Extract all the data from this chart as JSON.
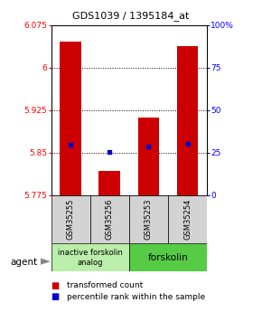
{
  "title": "GDS1039 / 1395184_at",
  "samples": [
    "GSM35255",
    "GSM35256",
    "GSM35253",
    "GSM35254"
  ],
  "bar_bottoms": [
    5.775,
    5.775,
    5.775,
    5.775
  ],
  "bar_tops": [
    6.045,
    5.818,
    5.912,
    6.038
  ],
  "percentile_values": [
    5.863,
    5.851,
    5.86,
    5.865
  ],
  "ylim_left": [
    5.775,
    6.075
  ],
  "ylim_right": [
    0,
    100
  ],
  "yticks_left": [
    5.775,
    5.85,
    5.925,
    6.0,
    6.075
  ],
  "yticks_right": [
    0,
    25,
    50,
    75,
    100
  ],
  "ytick_labels_left": [
    "5.775",
    "5.85",
    "5.925",
    "6",
    "6.075"
  ],
  "ytick_labels_right": [
    "0",
    "25",
    "50",
    "75",
    "100%"
  ],
  "hlines": [
    5.85,
    5.925,
    6.0
  ],
  "bar_color": "#cc0000",
  "percentile_color": "#0000cc",
  "group1_label": "inactive forskolin\nanalog",
  "group2_label": "forskolin",
  "group1_color": "#bbeeaa",
  "group2_color": "#55cc44",
  "agent_label": "agent",
  "legend_red": "transformed count",
  "legend_blue": "percentile rank within the sample",
  "bar_width": 0.55
}
